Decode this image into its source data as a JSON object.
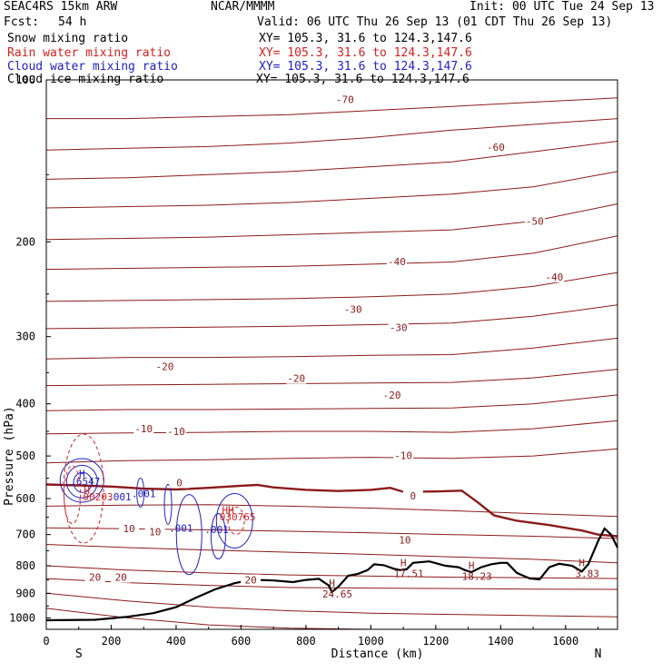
{
  "header": {
    "model": "SEAC4RS 15km ARW",
    "org": "NCAR/MMMM",
    "init": "Init: 00 UTC Tue 24 Sep 13",
    "fcst_label": "Fcst:",
    "fcst_value": "54 h",
    "valid": "Valid: 06 UTC Thu 26 Sep 13 (01 CDT Thu 26 Sep 13)"
  },
  "legend": [
    {
      "label": "Snow mixing ratio",
      "xy": "",
      "color": "#000000"
    },
    {
      "label": "Rain water mixing ratio",
      "xy": "XY= 105.3, 31.6 to 124.3,147.6",
      "color": "#d42020"
    },
    {
      "label": "Cloud water mixing ratio",
      "xy": "XY= 105.3, 31.6 to 124.3,147.6",
      "color": "#2020c8"
    },
    {
      "label": "Cloud ice mixing ratio",
      "xy": "XY= 105.3, 31.6 to 124.3,147.6",
      "color": "#000000"
    }
  ],
  "snow_xy": "XY= 105.3, 31.6 to 124.3,147.6",
  "colors": {
    "temperature": "#8b1a1a",
    "freezing": "#8b1a1a",
    "rain": "#d42020",
    "cloud": "#2020c8",
    "terrain": "#000000"
  },
  "chart_data": {
    "type": "line",
    "title": "",
    "xlabel": "Distance (km)",
    "ylabel": "Pressure (hPa)",
    "xlim": [
      0,
      1760
    ],
    "ylim": [
      1050,
      100
    ],
    "y_scale": "log",
    "x_ticks": [
      0,
      200,
      400,
      600,
      800,
      1000,
      1200,
      1400,
      1600
    ],
    "y_ticks": [
      100,
      200,
      300,
      400,
      500,
      600,
      700,
      800,
      900,
      1000
    ],
    "x_end_labels": {
      "left": "S",
      "right": "N"
    },
    "temperature_labels": [
      {
        "text": "-70",
        "x": 920,
        "p": 110
      },
      {
        "text": "-60",
        "x": 1385,
        "p": 135
      },
      {
        "text": "-50",
        "x": 1505,
        "p": 185
      },
      {
        "text": "-40",
        "x": 1080,
        "p": 220
      },
      {
        "text": "-40",
        "x": 1565,
        "p": 235
      },
      {
        "text": "-30",
        "x": 945,
        "p": 270
      },
      {
        "text": "-30",
        "x": 1085,
        "p": 292
      },
      {
        "text": "-20",
        "x": 365,
        "p": 345
      },
      {
        "text": "-20",
        "x": 770,
        "p": 363
      },
      {
        "text": "-20",
        "x": 1065,
        "p": 390
      },
      {
        "text": "-10",
        "x": 300,
        "p": 450
      },
      {
        "text": "-10",
        "x": 400,
        "p": 455
      },
      {
        "text": "-10",
        "x": 1100,
        "p": 505
      },
      {
        "text": "0",
        "x": 410,
        "p": 567
      },
      {
        "text": "0",
        "x": 1130,
        "p": 600
      },
      {
        "text": "10",
        "x": 255,
        "p": 690
      },
      {
        "text": "10",
        "x": 335,
        "p": 700
      },
      {
        "text": "10",
        "x": 1105,
        "p": 725
      },
      {
        "text": "20",
        "x": 150,
        "p": 850
      },
      {
        "text": "20",
        "x": 230,
        "p": 850
      },
      {
        "text": "20",
        "x": 630,
        "p": 860
      }
    ],
    "terrain_highs": [
      {
        "text": "H",
        "value": "24.65",
        "x": 880,
        "p": 895
      },
      {
        "text": "H",
        "value": "17.51",
        "x": 1100,
        "p": 820
      },
      {
        "text": "H",
        "value": "18.23",
        "x": 1310,
        "p": 830
      },
      {
        "text": "H",
        "value": "3.83",
        "x": 1650,
        "p": 820
      }
    ],
    "mixing_labels": [
      {
        "text": "H",
        "x": 110,
        "p": 548,
        "color": "#2020c8"
      },
      {
        "text": ".6547",
        "x": 120,
        "p": 566,
        "color": "#2020c8"
      },
      {
        "text": "H",
        "x": 125,
        "p": 588,
        "color": "#d42020"
      },
      {
        "text": ".00203",
        "x": 150,
        "p": 605,
        "color": "#d42020"
      },
      {
        "text": ".001",
        "x": 225,
        "p": 605,
        "color": "#2020c8"
      },
      {
        "text": ".001",
        "x": 300,
        "p": 596,
        "color": "#2020c8"
      },
      {
        "text": ".001",
        "x": 415,
        "p": 692,
        "color": "#2020c8"
      },
      {
        "text": ".001",
        "x": 525,
        "p": 695,
        "color": "#2020c8"
      },
      {
        "text": "HH",
        "x": 560,
        "p": 640,
        "color": "#d42020"
      },
      {
        "text": ".030765",
        "x": 580,
        "p": 659,
        "color": "#d42020"
      }
    ],
    "terrain": [
      [
        0,
        1010
      ],
      [
        150,
        1008
      ],
      [
        250,
        995
      ],
      [
        330,
        980
      ],
      [
        400,
        955
      ],
      [
        460,
        918
      ],
      [
        520,
        885
      ],
      [
        580,
        862
      ],
      [
        610,
        855
      ],
      [
        650,
        850
      ],
      [
        700,
        852
      ],
      [
        760,
        858
      ],
      [
        800,
        850
      ],
      [
        840,
        846
      ],
      [
        870,
        870
      ],
      [
        880,
        895
      ],
      [
        900,
        875
      ],
      [
        930,
        835
      ],
      [
        960,
        828
      ],
      [
        990,
        815
      ],
      [
        1010,
        795
      ],
      [
        1040,
        798
      ],
      [
        1070,
        810
      ],
      [
        1090,
        815
      ],
      [
        1110,
        812
      ],
      [
        1130,
        790
      ],
      [
        1180,
        785
      ],
      [
        1230,
        800
      ],
      [
        1270,
        805
      ],
      [
        1290,
        815
      ],
      [
        1310,
        822
      ],
      [
        1340,
        805
      ],
      [
        1370,
        795
      ],
      [
        1400,
        790
      ],
      [
        1420,
        790
      ],
      [
        1450,
        825
      ],
      [
        1490,
        845
      ],
      [
        1520,
        848
      ],
      [
        1550,
        805
      ],
      [
        1580,
        793
      ],
      [
        1620,
        800
      ],
      [
        1650,
        820
      ],
      [
        1670,
        795
      ],
      [
        1700,
        720
      ],
      [
        1720,
        682
      ],
      [
        1740,
        700
      ],
      [
        1760,
        740
      ]
    ]
  }
}
